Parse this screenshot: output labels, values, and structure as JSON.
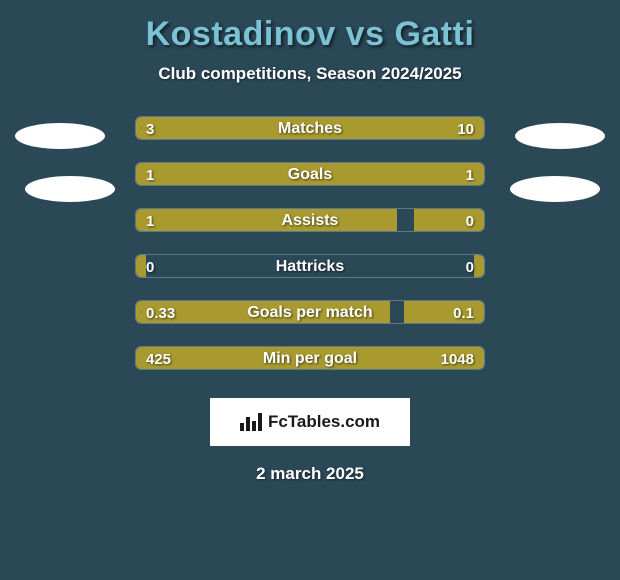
{
  "title": "Kostadinov vs Gatti",
  "subtitle": "Club competitions, Season 2024/2025",
  "date": "2 march 2025",
  "brand": "FcTables.com",
  "colors": {
    "background": "#2b4857",
    "bar_fill": "#a89a2f",
    "bar_border": "#5e7a88",
    "title_color": "#7bc3d4",
    "text_color": "#ffffff",
    "brand_bg": "#ffffff",
    "brand_text": "#1a1a1a"
  },
  "bar_track_width": 350,
  "bar_track_height": 24,
  "stats": [
    {
      "label": "Matches",
      "left_val": "3",
      "right_val": "10",
      "left_pct": 23.1,
      "right_pct": 76.9
    },
    {
      "label": "Goals",
      "left_val": "1",
      "right_val": "1",
      "left_pct": 50.0,
      "right_pct": 50.0
    },
    {
      "label": "Assists",
      "left_val": "1",
      "right_val": "0",
      "left_pct": 75.0,
      "right_pct": 20.0
    },
    {
      "label": "Hattricks",
      "left_val": "0",
      "right_val": "0",
      "left_pct": 3.0,
      "right_pct": 3.0
    },
    {
      "label": "Goals per match",
      "left_val": "0.33",
      "right_val": "0.1",
      "left_pct": 73.0,
      "right_pct": 23.0
    },
    {
      "label": "Min per goal",
      "left_val": "425",
      "right_val": "1048",
      "left_pct": 28.9,
      "right_pct": 71.1
    }
  ]
}
